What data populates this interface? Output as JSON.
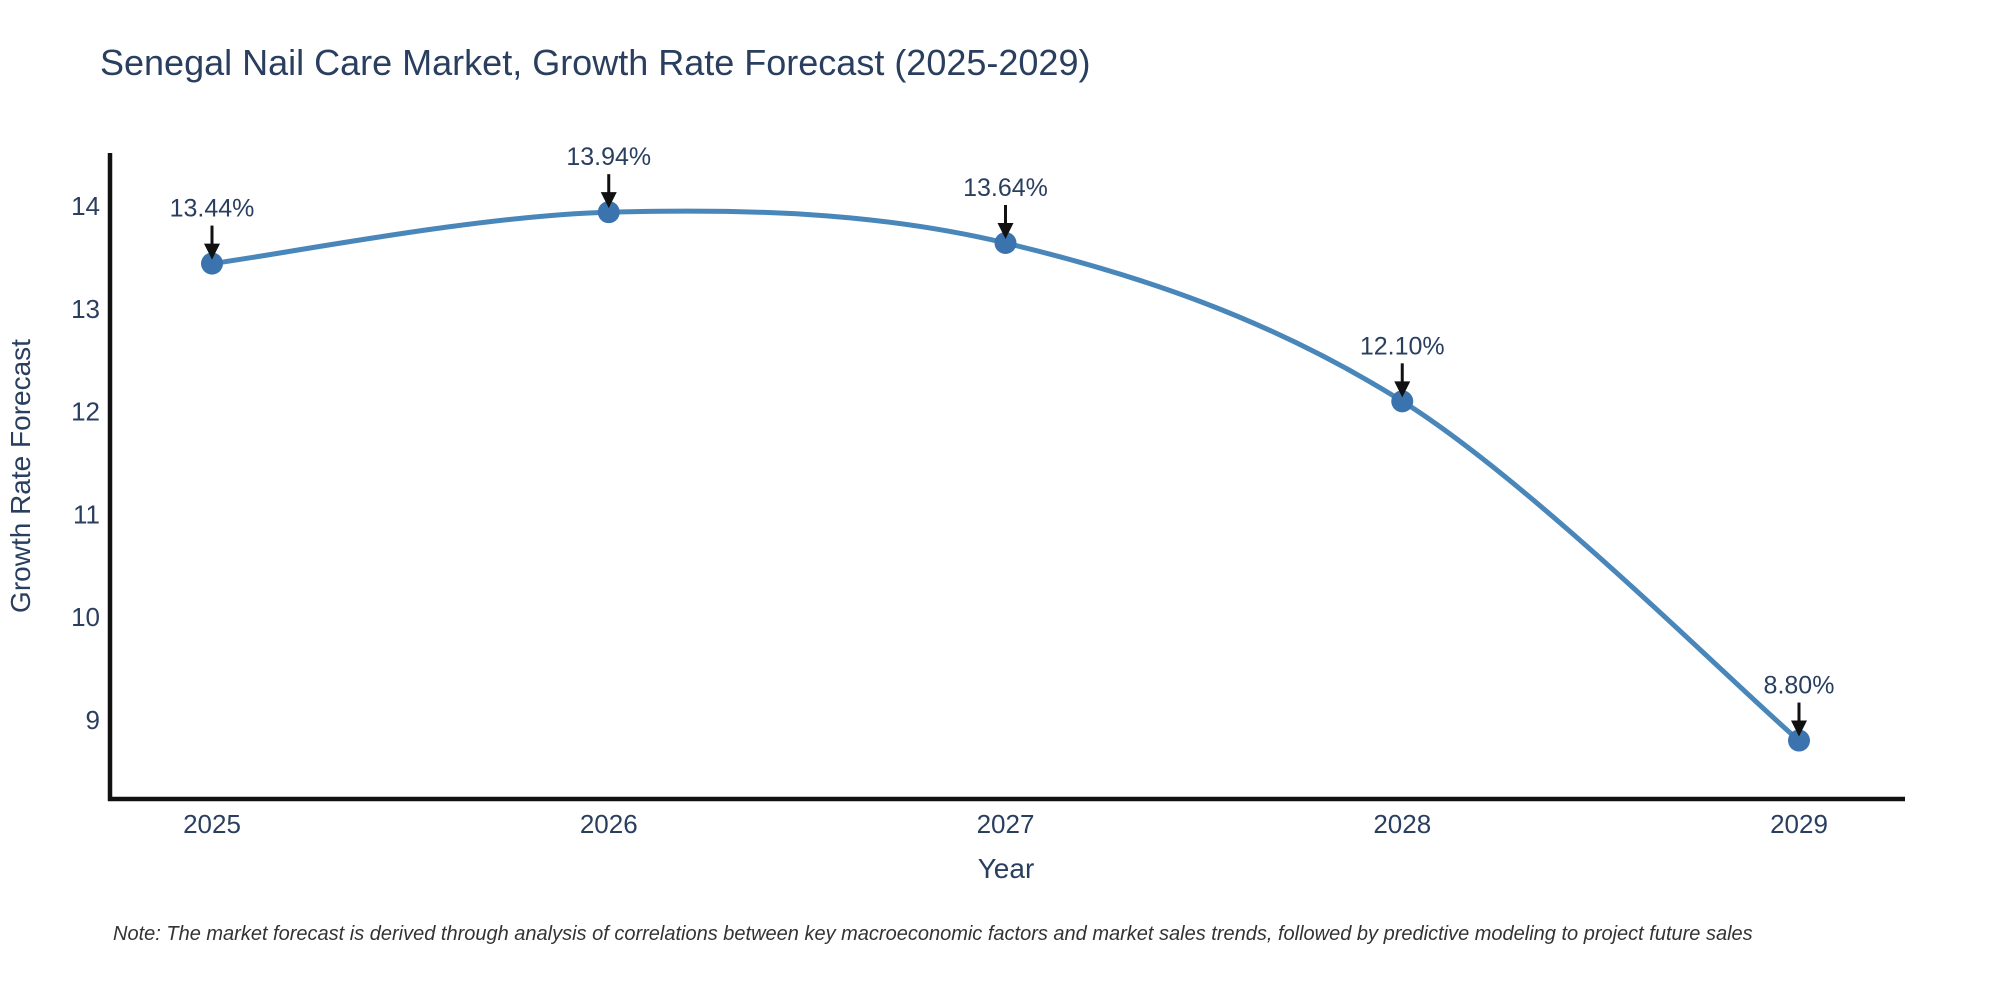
{
  "chart_data": {
    "type": "line",
    "title": "Senegal Nail Care Market, Growth Rate Forecast (2025-2029)",
    "xlabel": "Year",
    "ylabel": "Growth Rate Forecast",
    "x": [
      2025,
      2026,
      2027,
      2028,
      2029
    ],
    "series": [
      {
        "name": "Growth Rate Forecast",
        "values": [
          13.44,
          13.94,
          13.64,
          12.1,
          8.8
        ],
        "point_labels": [
          "13.44%",
          "13.94%",
          "13.64%",
          "12.10%",
          "8.80%"
        ]
      }
    ],
    "yticks": [
      9,
      10,
      11,
      12,
      13,
      14
    ],
    "ylim": [
      8.2,
      14.5
    ],
    "xlim": [
      2024.74,
      2029.27
    ],
    "grid": false,
    "legend_position": "none",
    "line_shape": "spline",
    "annotation_arrows": true,
    "colors": {
      "line": "#4986b9",
      "marker": "#3b73af",
      "text": "#2a3f5f",
      "axis": "#111111",
      "arrow": "#111111",
      "background": "#ffffff"
    }
  },
  "note": {
    "text": "Note: The market forecast is derived through analysis of correlations between key macroeconomic factors and market sales trends, followed by predictive modeling to project future sales"
  }
}
